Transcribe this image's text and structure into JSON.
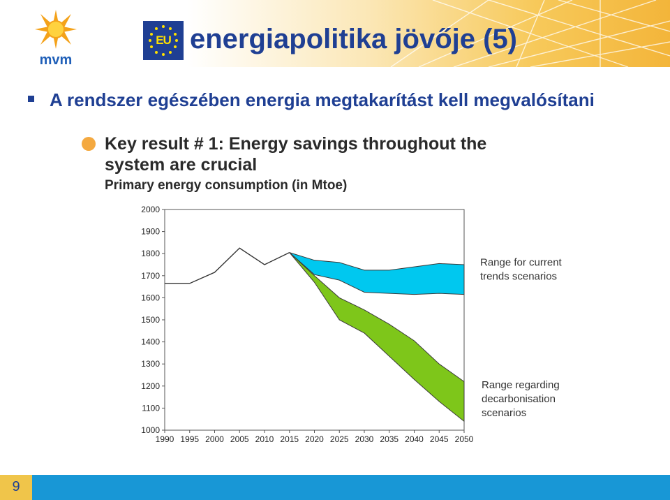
{
  "header": {
    "logo_text": "mvm",
    "eu_label": "EU",
    "title": "energiapolitika jövője (5)"
  },
  "bullet": {
    "text": "A rendszer egészében energia megtakarítást kell megvalósítani"
  },
  "chart_data": {
    "type": "area",
    "title": "Key result # 1: Energy savings throughout the",
    "title_line2": "system are crucial",
    "subtitle": "Primary energy consumption (in Mtoe)",
    "xlabel": "",
    "ylabel": "",
    "x": [
      1990,
      1995,
      2000,
      2005,
      2010,
      2015,
      2020,
      2025,
      2030,
      2035,
      2040,
      2045,
      2050
    ],
    "ylim": [
      1000,
      2000
    ],
    "xlim": [
      1990,
      2050
    ],
    "yticks": [
      1000,
      1100,
      1200,
      1300,
      1400,
      1500,
      1600,
      1700,
      1800,
      1900,
      2000
    ],
    "historical": {
      "x": [
        1990,
        1995,
        2000,
        2005,
        2010,
        2015
      ],
      "y": [
        1665,
        1665,
        1715,
        1825,
        1750,
        1805
      ]
    },
    "series": [
      {
        "name": "Range for current trends scenarios",
        "color": "#00c8ef",
        "x": [
          2015,
          2020,
          2025,
          2030,
          2035,
          2040,
          2045,
          2050
        ],
        "upper": [
          1805,
          1770,
          1760,
          1725,
          1725,
          1740,
          1755,
          1750
        ],
        "lower": [
          1805,
          1705,
          1680,
          1625,
          1620,
          1615,
          1620,
          1615
        ]
      },
      {
        "name": "Range regarding decarbonisation scenarios",
        "color": "#7ec61a",
        "x": [
          2015,
          2020,
          2025,
          2030,
          2035,
          2040,
          2045,
          2050
        ],
        "upper": [
          1805,
          1700,
          1600,
          1545,
          1480,
          1405,
          1300,
          1220
        ],
        "lower": [
          1805,
          1670,
          1500,
          1440,
          1335,
          1230,
          1130,
          1040
        ]
      }
    ],
    "legend_labels": [
      [
        "Range for current",
        "trends scenarios"
      ],
      [
        "Range regarding",
        "decarbonisation",
        "scenarios"
      ]
    ],
    "grid": false
  },
  "footer": {
    "page_number": "9"
  },
  "colors": {
    "title_blue": "#1f3f93",
    "footer_blue": "#1897d6",
    "page_box": "#f0c54a"
  }
}
